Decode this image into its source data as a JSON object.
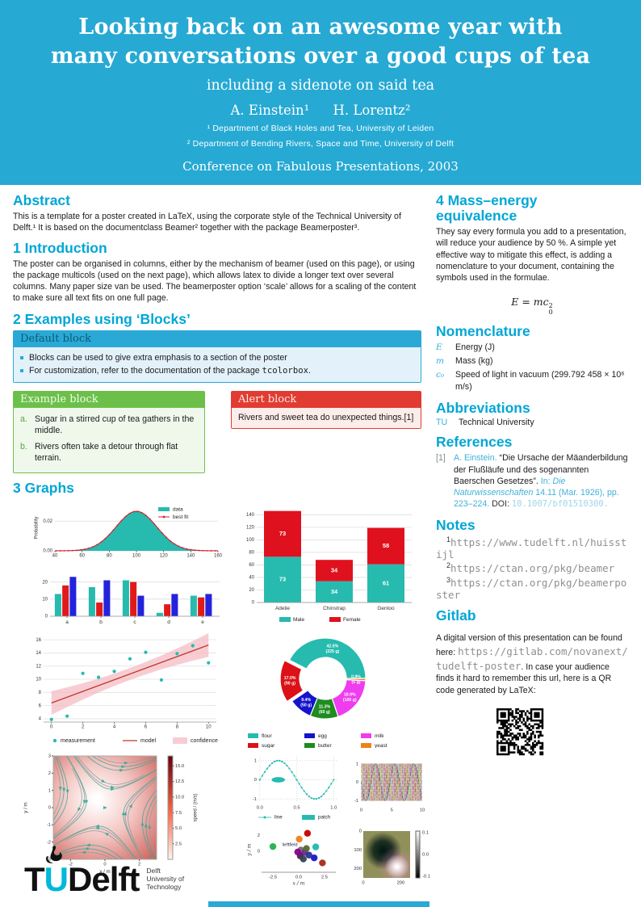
{
  "colors": {
    "accent": "#00a6d6",
    "header_bg": "#26a9d3",
    "teal": "#26bbae",
    "red": "#d8222c",
    "blue": "#2323dd",
    "green": "#6cc04a",
    "alert_red": "#e23c32"
  },
  "header": {
    "title": "Looking back on an awesome year with many conversations over a good cups of tea",
    "subtitle": "including a sidenote on said tea",
    "authors": [
      "A. Einstein¹",
      "H. Lorentz²"
    ],
    "affiliations": [
      "¹ Department of Black Holes and Tea, University of Leiden",
      "² Department of Bending Rivers, Space and Time, University of Delft"
    ],
    "conference": "Conference on Fabulous Presentations, 2003"
  },
  "left": {
    "abstract": {
      "heading": "Abstract",
      "text": "This is a template for a poster created in LaTeX, using the corporate style of the Technical University of Delft.¹ It is based on the documentclass Beamer² together with the package Beamerposter³."
    },
    "introduction": {
      "heading": "1 Introduction",
      "text": "The poster can be organised in columns, either by the mechanism of beamer (used on this page), or using the package multicols (used on the next page), which allows latex to divide a longer text over several columns. Many paper size van be used. The beamerposter option ‘scale’ allows for a scaling of the content to make sure all text fits on one full page."
    },
    "blocks": {
      "heading": "2 Examples using ‘Blocks’",
      "default_block": {
        "title": "Default block",
        "bullet1": "Blocks can be used to give extra emphasis to a section of the poster",
        "bullet2_pre": "For customization, refer to the documentation of the package ",
        "bullet2_code": "tcolorbox",
        "bullet2_post": "."
      },
      "example_block": {
        "title": "Example block",
        "items": [
          {
            "marker": "a.",
            "text": "Sugar in a stirred cup of tea gathers in the middle."
          },
          {
            "marker": "b.",
            "text": "Rivers often take a detour through flat terrain."
          }
        ]
      },
      "alert_block": {
        "title": "Alert block",
        "text": "Rivers and sweet tea do unexpected things.[1]"
      }
    },
    "graphs": {
      "heading": "3 Graphs"
    }
  },
  "right": {
    "mass": {
      "heading": "4 Mass–energy equivalence",
      "text": "They say every formula you add to a presentation, will reduce your audience by 50 %. A simple yet effective way to mitigate this effect, is adding a nomenclature to your document, containing the symbols used in the formulae.",
      "formula": {
        "lhs": "E = mc",
        "sup": "2",
        "sub": "0"
      }
    },
    "nomenclature": {
      "heading": "Nomenclature",
      "items": [
        {
          "sym": "E",
          "desc": "Energy (J)"
        },
        {
          "sym": "m",
          "desc": "Mass (kg)"
        },
        {
          "sym": "c₀",
          "desc": "Speed of light in vacuum (299.792 458 × 10⁶ m/s)"
        }
      ]
    },
    "abbreviations": {
      "heading": "Abbreviations",
      "items": [
        {
          "abbr": "TU",
          "desc": "Technical University"
        }
      ]
    },
    "references": {
      "heading": "References",
      "entries": [
        {
          "num": "[1]",
          "author": "A. Einstein.",
          "title": "“Die Ursache der Mäanderbildung der Flußläufe und des sogenannten Baerschen Gesetzes”.",
          "in_label": "In:",
          "journal": "Die Naturwissenschaften",
          "detail": "14.11 (Mar. 1926), pp. 223–224.",
          "doi_label": "DOI:",
          "doi": "10.1007/bf01510300."
        }
      ]
    },
    "notes": {
      "heading": "Notes",
      "items": [
        {
          "sup": "1",
          "url": "https://www.tudelft.nl/huisstijl"
        },
        {
          "sup": "2",
          "url": "https://ctan.org/pkg/beamer"
        },
        {
          "sup": "3",
          "url": "https://ctan.org/pkg/beamerposter"
        }
      ]
    },
    "gitlab": {
      "heading": "Gitlab",
      "text_before": "A digital version of this presentation can be found here: ",
      "url": "https://gitlab.com/novanext/tudelft-poster",
      "text_after": ". In case your audience finds it hard to remember this url, here is a QR code generated by LaTeX:"
    }
  },
  "footer": {
    "logo": {
      "t": "T",
      "u": "U",
      "delft": "Delft",
      "tagline1": "Delft",
      "tagline2": "University of",
      "tagline3": "Technology"
    }
  },
  "chart_data": [
    {
      "id": "hist_fit",
      "type": "area",
      "ylabel": "Probability",
      "x_ticks": [
        40,
        60,
        80,
        100,
        120,
        140,
        160
      ],
      "y_ticks": [
        "0.00",
        "0.02"
      ],
      "y_tick_vals": [
        0,
        0.02
      ],
      "xlim": [
        40,
        160
      ],
      "ylim": [
        0,
        0.031
      ],
      "gauss": {
        "mean": 100,
        "sd": 15,
        "peak": 0.0266
      },
      "legend": [
        {
          "label": "data"
        },
        {
          "label": "best fit"
        }
      ],
      "colors": {
        "data": "#26bbae",
        "fit": "#cf2130"
      }
    },
    {
      "id": "grouped_bar",
      "type": "bar",
      "categories": [
        "a",
        "b",
        "c",
        "d",
        "e"
      ],
      "series": [
        {
          "name": "teal",
          "color": "#26bbae",
          "values": [
            13,
            17,
            21,
            2,
            12
          ]
        },
        {
          "name": "red",
          "color": "#e01a1a",
          "values": [
            18,
            8,
            20,
            7,
            11
          ]
        },
        {
          "name": "blue",
          "color": "#2323dd",
          "values": [
            23,
            21,
            12,
            13,
            13
          ]
        }
      ],
      "ylim": [
        0,
        25
      ],
      "y_ticks": [
        0,
        10,
        20
      ]
    },
    {
      "id": "stacked_bar",
      "type": "bar-stacked",
      "categories": [
        "Adelie",
        "Chinstrap",
        "Gentoo"
      ],
      "series": [
        {
          "name": "Male",
          "color": "#26bbae",
          "values": [
            73,
            34,
            61
          ]
        },
        {
          "name": "Female",
          "color": "#e0111e",
          "values": [
            73,
            34,
            58
          ]
        }
      ],
      "ylim": [
        0,
        152
      ],
      "y_ticks": [
        0,
        20,
        40,
        60,
        80,
        100,
        120,
        140
      ],
      "legend_position": "bottom"
    },
    {
      "id": "scatter_fit",
      "type": "scatter",
      "x": [
        0,
        1,
        2,
        3,
        4,
        5,
        6,
        7,
        8,
        9,
        10
      ],
      "y": [
        3.9,
        4.4,
        10.9,
        10.3,
        11.2,
        13.1,
        14.1,
        9.9,
        13.9,
        15.1,
        12.5
      ],
      "model": {
        "intercept": 6.4,
        "slope": 0.88
      },
      "band_halfwidth": [
        1.8,
        1.5,
        1.25,
        1.05,
        0.95,
        0.9,
        0.95,
        1.05,
        1.25,
        1.5,
        1.8
      ],
      "xlim": [
        -0.5,
        10.5
      ],
      "ylim": [
        3.5,
        17
      ],
      "x_ticks": [
        0,
        2,
        4,
        6,
        8,
        10
      ],
      "y_ticks": [
        4,
        6,
        8,
        10,
        12,
        14,
        16
      ],
      "legend": [
        {
          "label": "measurement"
        },
        {
          "label": "model"
        },
        {
          "label": "confidence"
        }
      ],
      "colors": {
        "point": "#26bbae",
        "line": "#c0392b",
        "band": "#f4bcc4"
      }
    },
    {
      "id": "donut",
      "type": "pie",
      "inner_ratio": 0.52,
      "start_angle": 0,
      "counterclock": true,
      "slices": [
        {
          "label": "flour",
          "pct": 42.5,
          "grams": "225 g",
          "color": "#26bbae",
          "explode": 0
        },
        {
          "label": "sugar",
          "pct": 17.0,
          "grams": "90 g",
          "color": "#dc1118",
          "explode": 6
        },
        {
          "label": "egg",
          "pct": 9.4,
          "grams": "50 g",
          "color": "#1414cc",
          "explode": 0
        },
        {
          "label": "butter",
          "pct": 11.3,
          "grams": "60 g",
          "color": "#1e8c1e",
          "explode": 0
        },
        {
          "label": "milk",
          "pct": 18.9,
          "grams": "100 g",
          "color": "#ee3cee",
          "explode": 0
        },
        {
          "label": "yeast",
          "pct": 0.9,
          "grams": "5 g",
          "color": "#f08018",
          "explode": 0
        }
      ],
      "legend_order": [
        "flour",
        "sugar",
        "egg",
        "butter",
        "milk",
        "yeast"
      ]
    },
    {
      "id": "stream",
      "type": "stream",
      "xlabel": "x / m",
      "ylabel": "y / m",
      "x_ticks": [
        -2,
        0,
        2
      ],
      "y_ticks": [
        -3,
        -2,
        -1,
        0,
        1,
        2,
        3
      ],
      "xlim": [
        -3,
        3
      ],
      "ylim": [
        -3,
        3
      ],
      "colorbar": {
        "label": "speed / (m/s)",
        "ticks": [
          2.5,
          5.0,
          7.5,
          10.0,
          12.5,
          15.0
        ]
      },
      "line_colors": [
        "#3fa89c",
        "#8e9d9b"
      ]
    },
    {
      "id": "line_patch",
      "type": "line",
      "x_ticks": [
        "0.0",
        "0.5",
        "1.0"
      ],
      "x_tick_vals": [
        0,
        0.5,
        1
      ],
      "y_ticks": [
        -1,
        0,
        1
      ],
      "color": "#26bbae",
      "ellipse": {
        "cx": 0.25,
        "cy": 0,
        "rx": 0.09,
        "ry": 0.14
      },
      "legend": [
        {
          "label": "line"
        },
        {
          "label": "patch"
        }
      ]
    },
    {
      "id": "phase_sines",
      "type": "multiline",
      "x_ticks": [
        0,
        5,
        10
      ],
      "y_ticks": [
        -1,
        0,
        1
      ],
      "n": 21,
      "omega": 2.0,
      "colors": [
        "#1f77b4",
        "#ff7f0e",
        "#2ca02c",
        "#d62728",
        "#9467bd",
        "#8c564b",
        "#e377c2",
        "#7f7f7f",
        "#bcbd22",
        "#17becf",
        "#000000",
        "#e91e63"
      ]
    },
    {
      "id": "blob_scatter",
      "type": "scatter-blob",
      "xlabel": "x / m",
      "ylabel": "y / m",
      "x_ticks": [
        "-2.5",
        "0.0",
        "2.5"
      ],
      "x_tick_vals": [
        -2.5,
        0,
        2.5
      ],
      "y_ticks": [
        0,
        2
      ],
      "xlim": [
        -3.6,
        3.6
      ],
      "ylim": [
        -2.7,
        3.1
      ],
      "annotation": "\\leftfield",
      "points": [
        {
          "x": -2.5,
          "y": 0.6,
          "c": "#22b14c"
        },
        {
          "x": 0.05,
          "y": 1.55,
          "c": "#f07f1a"
        },
        {
          "x": 0.85,
          "y": 2.3,
          "c": "#c40000"
        },
        {
          "x": 1.65,
          "y": 0.55,
          "c": "#20b8af"
        },
        {
          "x": 1.5,
          "y": -0.85,
          "c": "#1616cc"
        },
        {
          "x": 2.3,
          "y": -1.5,
          "c": "#a22a1a"
        },
        {
          "x": 0.2,
          "y": 0.15,
          "c": "#6d6d6d"
        },
        {
          "x": 0.6,
          "y": -0.15,
          "c": "#7b1fa2"
        },
        {
          "x": 1.0,
          "y": -0.5,
          "c": "#283593"
        },
        {
          "x": 0.15,
          "y": -0.6,
          "c": "#4a235a"
        },
        {
          "x": 0.75,
          "y": 0.35,
          "c": "#556b2f"
        },
        {
          "x": -0.1,
          "y": -0.1,
          "c": "#8b008b"
        },
        {
          "x": 0.45,
          "y": -1.0,
          "c": "#36454f"
        }
      ]
    },
    {
      "id": "image_gauss",
      "type": "heatmap",
      "x_ticks": [
        0,
        200
      ],
      "y_ticks": [
        0,
        100,
        200
      ],
      "bg": "#90905a",
      "colorbar": {
        "ticks": [
          "0.1",
          "0.0",
          "-0.1"
        ]
      }
    }
  ]
}
